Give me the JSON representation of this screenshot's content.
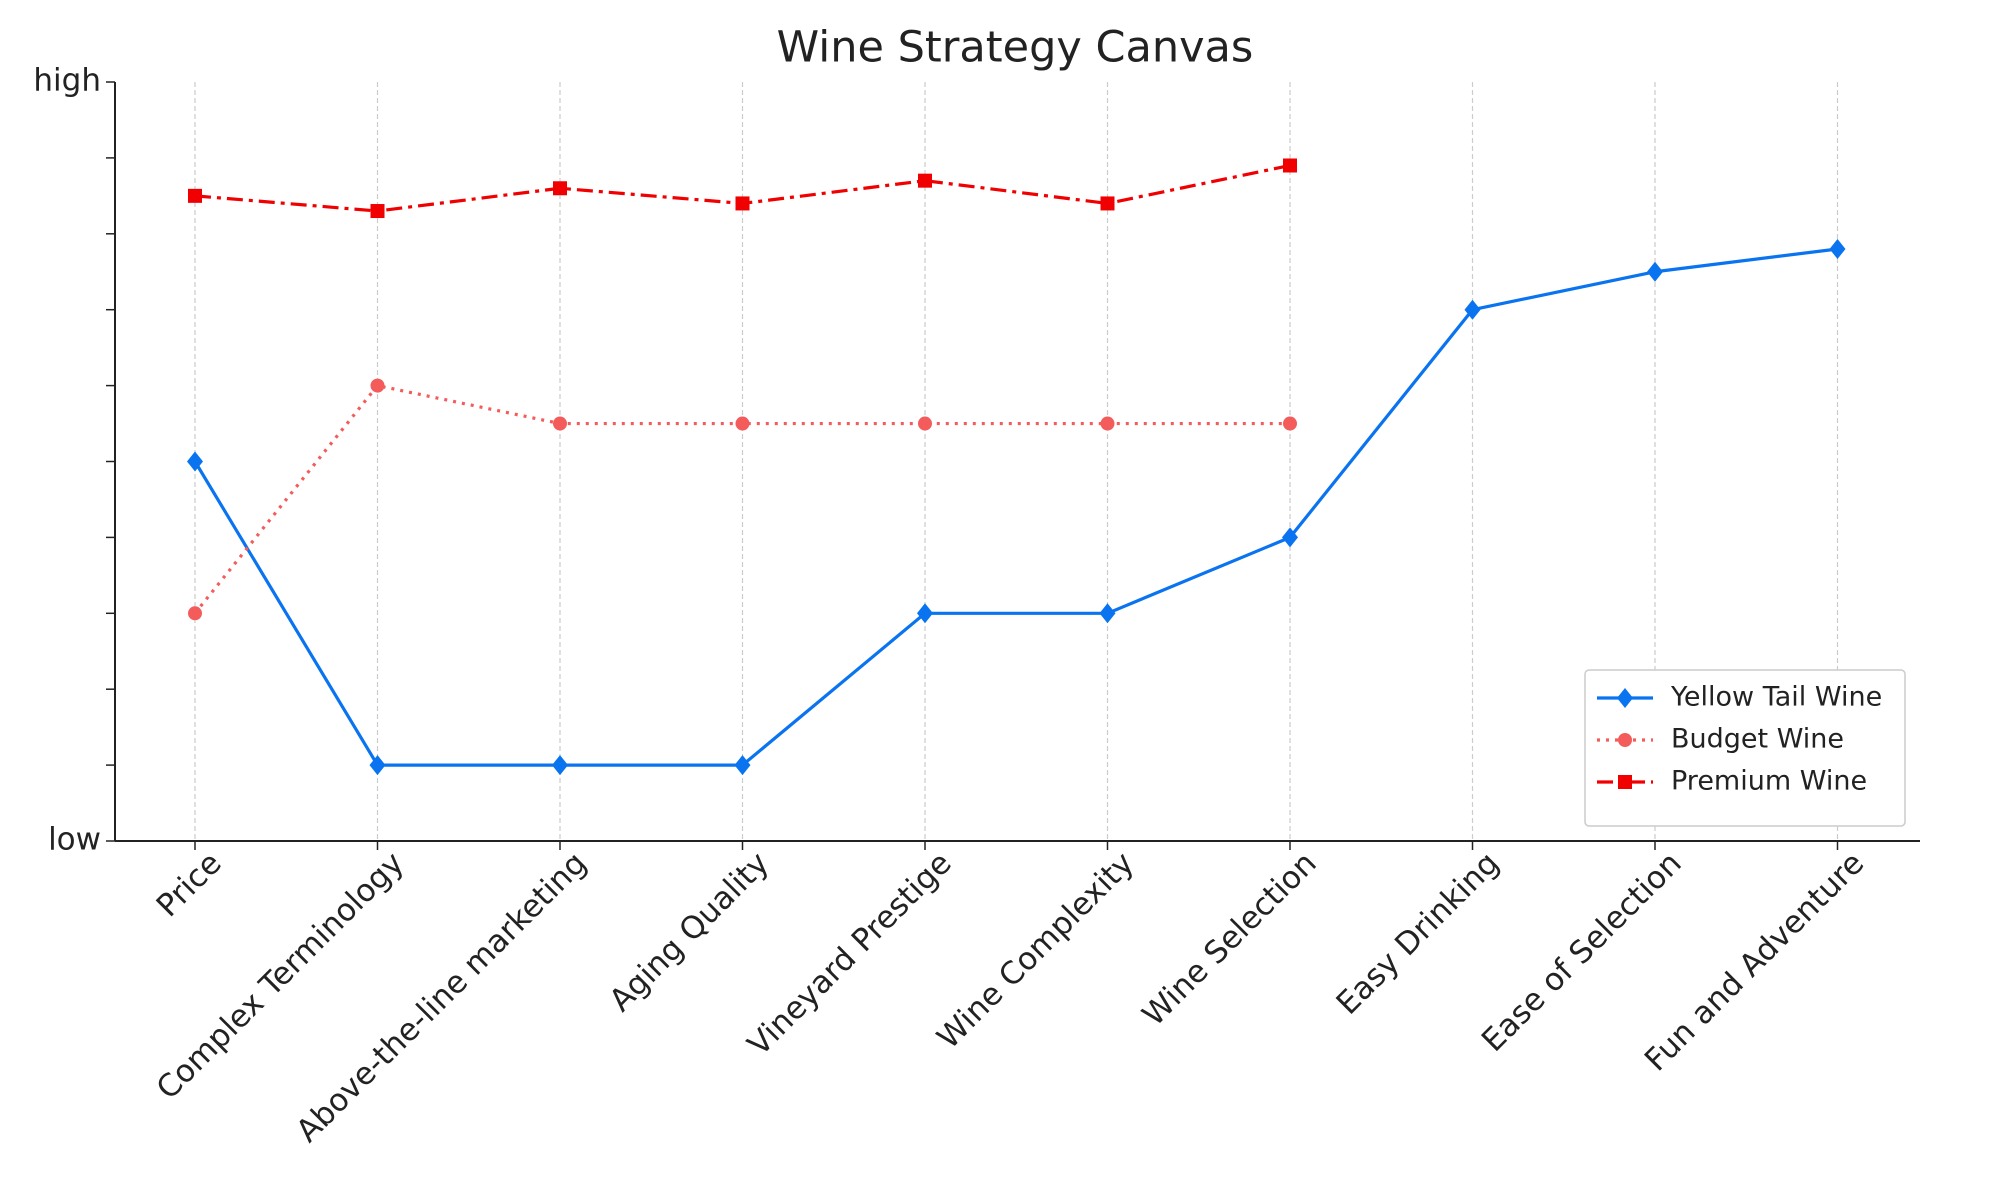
{
  "chart_data": {
    "type": "line",
    "title": "Wine Strategy Canvas",
    "categories": [
      "Price",
      "Complex Terminology",
      "Above-the-line marketing",
      "Aging Quality",
      "Vineyard Prestige",
      "Wine Complexity",
      "Wine Selection",
      "Easy Drinking",
      "Ease of Selection",
      "Fun and Adventure"
    ],
    "series": [
      {
        "name": "Yellow Tail Wine",
        "color": "#0a74f0",
        "linestyle": "solid",
        "marker": "diamond",
        "values": [
          5,
          1,
          1,
          1,
          3,
          3,
          4,
          7,
          7.5,
          7.8
        ]
      },
      {
        "name": "Budget Wine",
        "color": "#f45b5b",
        "linestyle": "dotted",
        "marker": "circle",
        "values": [
          3,
          6,
          5.5,
          5.5,
          5.5,
          5.5,
          5.5,
          null,
          null,
          null
        ]
      },
      {
        "name": "Premium Wine",
        "color": "#f00000",
        "linestyle": "dashdot",
        "marker": "square",
        "values": [
          8.5,
          8.3,
          8.6,
          8.4,
          8.7,
          8.4,
          8.9,
          null,
          null,
          null
        ]
      }
    ],
    "ylim": [
      0,
      10
    ],
    "yticks": [
      {
        "value": 0,
        "label": "low"
      },
      {
        "value": 10,
        "label": "high"
      }
    ],
    "minor_yticks": [
      1,
      2,
      3,
      4,
      5,
      6,
      7,
      8,
      9
    ],
    "grid": "x",
    "legend": "lower right"
  }
}
